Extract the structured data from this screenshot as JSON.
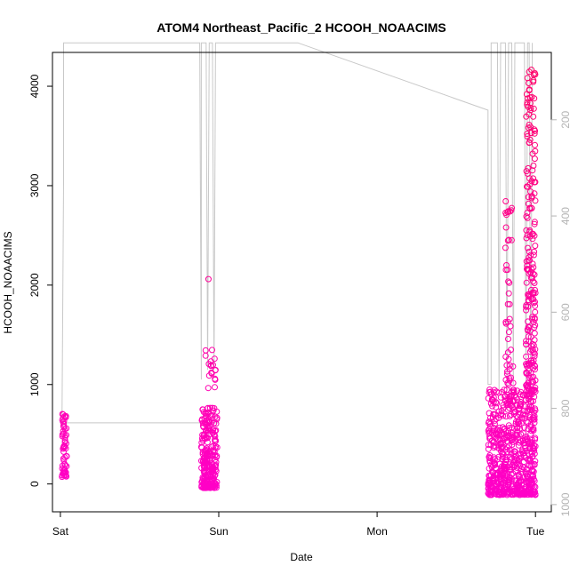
{
  "chart_data": {
    "type": "scatter",
    "title": "ATOM4 Northeast_Pacific_2 HCOOH_NOAACIMS",
    "xlabel": "Date",
    "ylabel": "HCOOH_NOAACIMS",
    "x_unit": "days since Sat 00:00",
    "xlim": [
      -0.05,
      3.1
    ],
    "ylim": [
      -280,
      4340
    ],
    "x_ticks": [
      {
        "value": 0,
        "label": "Sat"
      },
      {
        "value": 1,
        "label": "Sun"
      },
      {
        "value": 2,
        "label": "Mon"
      },
      {
        "value": 3,
        "label": "Tue"
      }
    ],
    "y_ticks": [
      0,
      1000,
      2000,
      3000,
      4000
    ],
    "y2_ticks": [
      200,
      400,
      600,
      800,
      1000
    ],
    "y2lim": [
      1015,
      60
    ],
    "y2_reversed": true,
    "grid": false,
    "legend": "none",
    "colors": {
      "points_low": "#ff00cc",
      "points_high": "#ff0066",
      "line": "#c8c8c8",
      "axis": "#000000",
      "y2_axis": "#b4b4b4"
    },
    "point_clusters": [
      {
        "x_range": [
          0.01,
          0.04
        ],
        "y_min": 60,
        "y_max": 720,
        "n": 60
      },
      {
        "x_range": [
          0.89,
          0.99
        ],
        "y_min": -40,
        "y_max": 780,
        "n": 240
      },
      {
        "x_range": [
          0.9,
          0.98
        ],
        "y_min": 950,
        "y_max": 1350,
        "n": 18
      },
      {
        "x_range": [
          2.7,
          3.0
        ],
        "y_min": -110,
        "y_max": 950,
        "n": 650
      },
      {
        "x_range": [
          2.81,
          2.86
        ],
        "y_min": 1000,
        "y_max": 2850,
        "n": 45
      },
      {
        "x_range": [
          2.94,
          3.0
        ],
        "y_min": 900,
        "y_max": 4200,
        "n": 220
      }
    ],
    "outliers": [
      {
        "x": 0.935,
        "y": 2060
      }
    ],
    "altitude_series": {
      "axis": "right",
      "points": [
        [
          0.01,
          830
        ],
        [
          0.02,
          330
        ],
        [
          0.02,
          40
        ],
        [
          0.03,
          40
        ],
        [
          0.85,
          40
        ],
        [
          0.88,
          40
        ],
        [
          0.89,
          740
        ],
        [
          0.89,
          40
        ],
        [
          0.92,
          40
        ],
        [
          0.93,
          720
        ],
        [
          0.94,
          40
        ],
        [
          0.96,
          40
        ],
        [
          0.97,
          720
        ],
        [
          0.98,
          40
        ],
        [
          0.99,
          40
        ],
        [
          1.5,
          40
        ],
        [
          2.7,
          180
        ],
        [
          2.7,
          750
        ],
        [
          2.72,
          750
        ],
        [
          2.72,
          40
        ],
        [
          2.76,
          40
        ],
        [
          2.77,
          760
        ],
        [
          2.78,
          40
        ],
        [
          2.81,
          40
        ],
        [
          2.82,
          760
        ],
        [
          2.83,
          40
        ],
        [
          2.85,
          40
        ],
        [
          2.86,
          750
        ],
        [
          2.87,
          40
        ],
        [
          2.93,
          40
        ],
        [
          2.94,
          760
        ],
        [
          2.95,
          40
        ],
        [
          2.96,
          40
        ],
        [
          2.97,
          800
        ],
        [
          2.98,
          40
        ]
      ],
      "baseline_segment": [
        [
          0.01,
          830
        ],
        [
          1.0,
          830
        ]
      ]
    }
  }
}
